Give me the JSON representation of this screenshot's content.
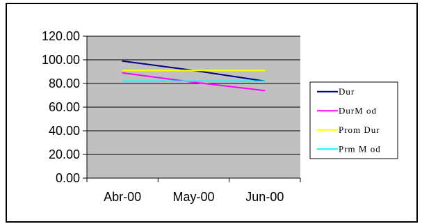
{
  "chart_data": {
    "type": "line",
    "categories": [
      "Abr-00",
      "May-00",
      "Jun-00"
    ],
    "series": [
      {
        "name": "Dur",
        "values": [
          99,
          91,
          82
        ],
        "color": "#000080"
      },
      {
        "name": "DurM od",
        "values": [
          89,
          81,
          74
        ],
        "color": "#ff00ff"
      },
      {
        "name": "Prom Dur",
        "values": [
          91,
          91,
          91
        ],
        "color": "#ffff00"
      },
      {
        "name": "Prm M od",
        "values": [
          82,
          82,
          82
        ],
        "color": "#00ffff"
      }
    ],
    "ylim": [
      0,
      120
    ],
    "yticks": [
      "0.00",
      "20.00",
      "40.00",
      "60.00",
      "80.00",
      "100.00",
      "120.00"
    ],
    "title": "",
    "xlabel": "",
    "ylabel": "",
    "plot_background": "#c0c0c0",
    "grid": true,
    "legend_position": "right"
  }
}
